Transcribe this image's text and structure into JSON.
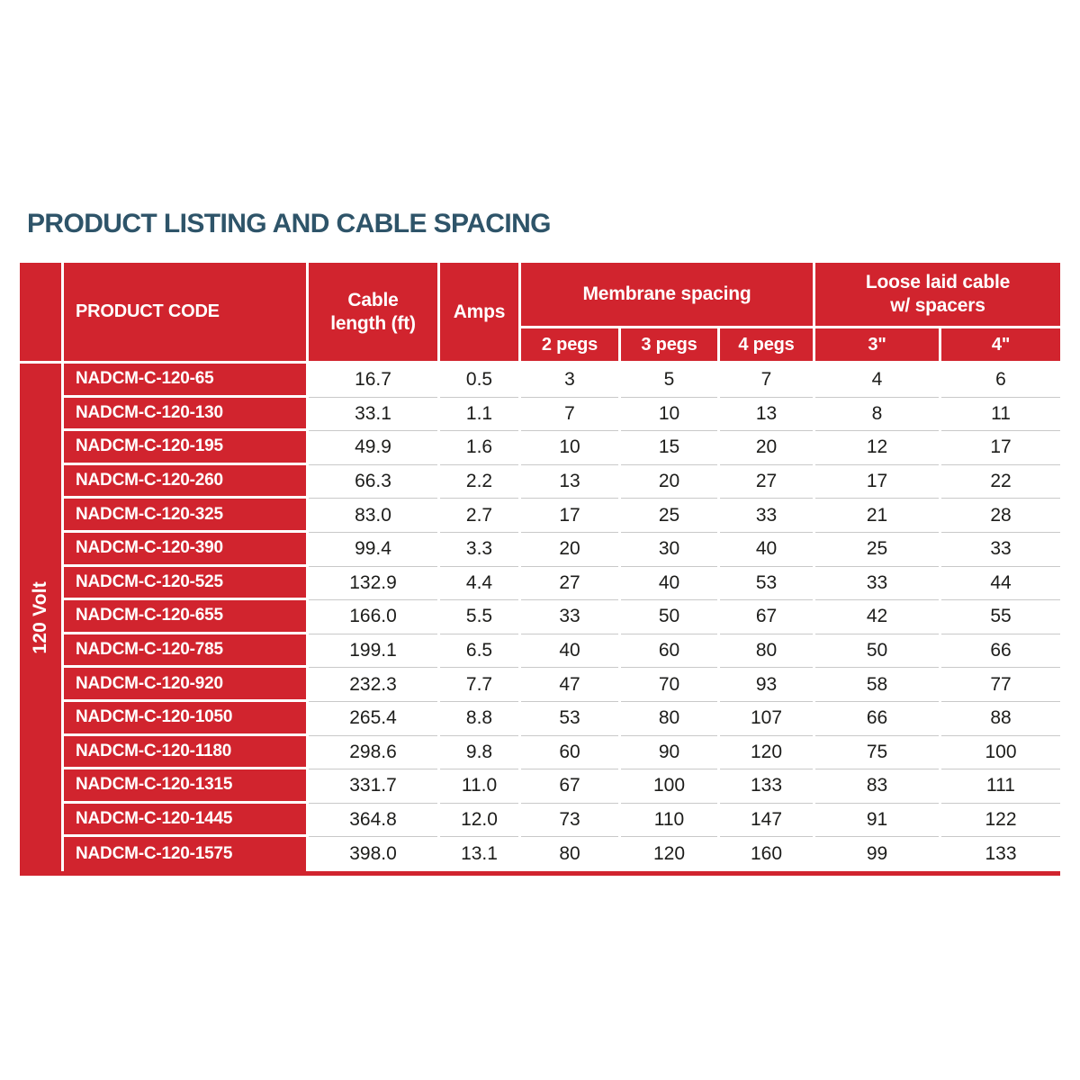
{
  "page_title": "PRODUCT LISTING AND CABLE SPACING",
  "colors": {
    "brand_red": "#d1242e",
    "title_teal": "#2e5469",
    "row_line_gray": "#c9c9c9",
    "value_text": "#1d1d1b"
  },
  "table": {
    "voltage_group": "120 Volt",
    "header": {
      "product_code": "PRODUCT CODE",
      "cable_length": "Cable length (ft)",
      "amps": "Amps",
      "membrane_spacing": "Membrane spacing",
      "membrane_sub": [
        "2 pegs",
        "3 pegs",
        "4 pegs"
      ],
      "loose_laid": "Loose laid cable w/ spacers",
      "loose_sub": [
        "3\"",
        "4\""
      ]
    },
    "rows": [
      {
        "code": "NADCM-C-120-65",
        "cable_length": "16.7",
        "amps": "0.5",
        "pegs_2": "3",
        "pegs_3": "5",
        "pegs_4": "7",
        "spacers_3in": "4",
        "spacers_4in": "6"
      },
      {
        "code": "NADCM-C-120-130",
        "cable_length": "33.1",
        "amps": "1.1",
        "pegs_2": "7",
        "pegs_3": "10",
        "pegs_4": "13",
        "spacers_3in": "8",
        "spacers_4in": "11"
      },
      {
        "code": "NADCM-C-120-195",
        "cable_length": "49.9",
        "amps": "1.6",
        "pegs_2": "10",
        "pegs_3": "15",
        "pegs_4": "20",
        "spacers_3in": "12",
        "spacers_4in": "17"
      },
      {
        "code": "NADCM-C-120-260",
        "cable_length": "66.3",
        "amps": "2.2",
        "pegs_2": "13",
        "pegs_3": "20",
        "pegs_4": "27",
        "spacers_3in": "17",
        "spacers_4in": "22"
      },
      {
        "code": "NADCM-C-120-325",
        "cable_length": "83.0",
        "amps": "2.7",
        "pegs_2": "17",
        "pegs_3": "25",
        "pegs_4": "33",
        "spacers_3in": "21",
        "spacers_4in": "28"
      },
      {
        "code": "NADCM-C-120-390",
        "cable_length": "99.4",
        "amps": "3.3",
        "pegs_2": "20",
        "pegs_3": "30",
        "pegs_4": "40",
        "spacers_3in": "25",
        "spacers_4in": "33"
      },
      {
        "code": "NADCM-C-120-525",
        "cable_length": "132.9",
        "amps": "4.4",
        "pegs_2": "27",
        "pegs_3": "40",
        "pegs_4": "53",
        "spacers_3in": "33",
        "spacers_4in": "44"
      },
      {
        "code": "NADCM-C-120-655",
        "cable_length": "166.0",
        "amps": "5.5",
        "pegs_2": "33",
        "pegs_3": "50",
        "pegs_4": "67",
        "spacers_3in": "42",
        "spacers_4in": "55"
      },
      {
        "code": "NADCM-C-120-785",
        "cable_length": "199.1",
        "amps": "6.5",
        "pegs_2": "40",
        "pegs_3": "60",
        "pegs_4": "80",
        "spacers_3in": "50",
        "spacers_4in": "66"
      },
      {
        "code": "NADCM-C-120-920",
        "cable_length": "232.3",
        "amps": "7.7",
        "pegs_2": "47",
        "pegs_3": "70",
        "pegs_4": "93",
        "spacers_3in": "58",
        "spacers_4in": "77"
      },
      {
        "code": "NADCM-C-120-1050",
        "cable_length": "265.4",
        "amps": "8.8",
        "pegs_2": "53",
        "pegs_3": "80",
        "pegs_4": "107",
        "spacers_3in": "66",
        "spacers_4in": "88"
      },
      {
        "code": "NADCM-C-120-1180",
        "cable_length": "298.6",
        "amps": "9.8",
        "pegs_2": "60",
        "pegs_3": "90",
        "pegs_4": "120",
        "spacers_3in": "75",
        "spacers_4in": "100"
      },
      {
        "code": "NADCM-C-120-1315",
        "cable_length": "331.7",
        "amps": "11.0",
        "pegs_2": "67",
        "pegs_3": "100",
        "pegs_4": "133",
        "spacers_3in": "83",
        "spacers_4in": "111"
      },
      {
        "code": "NADCM-C-120-1445",
        "cable_length": "364.8",
        "amps": "12.0",
        "pegs_2": "73",
        "pegs_3": "110",
        "pegs_4": "147",
        "spacers_3in": "91",
        "spacers_4in": "122"
      },
      {
        "code": "NADCM-C-120-1575",
        "cable_length": "398.0",
        "amps": "13.1",
        "pegs_2": "80",
        "pegs_3": "120",
        "pegs_4": "160",
        "spacers_3in": "99",
        "spacers_4in": "133"
      }
    ]
  }
}
